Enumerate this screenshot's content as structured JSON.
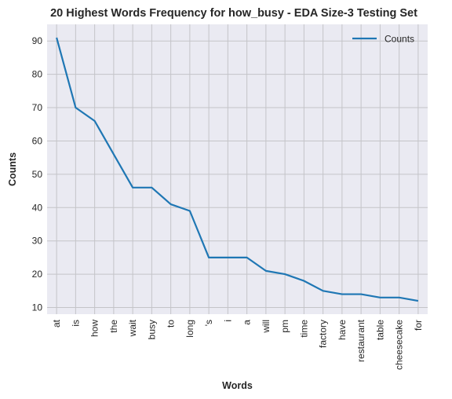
{
  "chart_data": {
    "type": "line",
    "title": "20 Highest Words Frequency for how_busy - EDA Size-3 Testing Set",
    "xlabel": "Words",
    "ylabel": "Counts",
    "categories": [
      "at",
      "is",
      "how",
      "the",
      "wait",
      "busy",
      "to",
      "long",
      "'s",
      "i",
      "a",
      "will",
      "pm",
      "time",
      "factory",
      "have",
      "restaurant",
      "table",
      "cheesecake",
      "for"
    ],
    "series": [
      {
        "name": "Counts",
        "values": [
          91,
          70,
          66,
          56,
          46,
          46,
          41,
          39,
          25,
          25,
          25,
          21,
          20,
          18,
          15,
          14,
          14,
          13,
          13,
          12
        ]
      }
    ],
    "ylim": [
      8,
      95
    ],
    "yticks": [
      10,
      20,
      30,
      40,
      50,
      60,
      70,
      80,
      90
    ],
    "grid": true,
    "legend": "top-right",
    "colors": {
      "line": "#1f77b4",
      "plot_bg": "#eaeaf2",
      "grid": "#c4c4c8"
    }
  }
}
